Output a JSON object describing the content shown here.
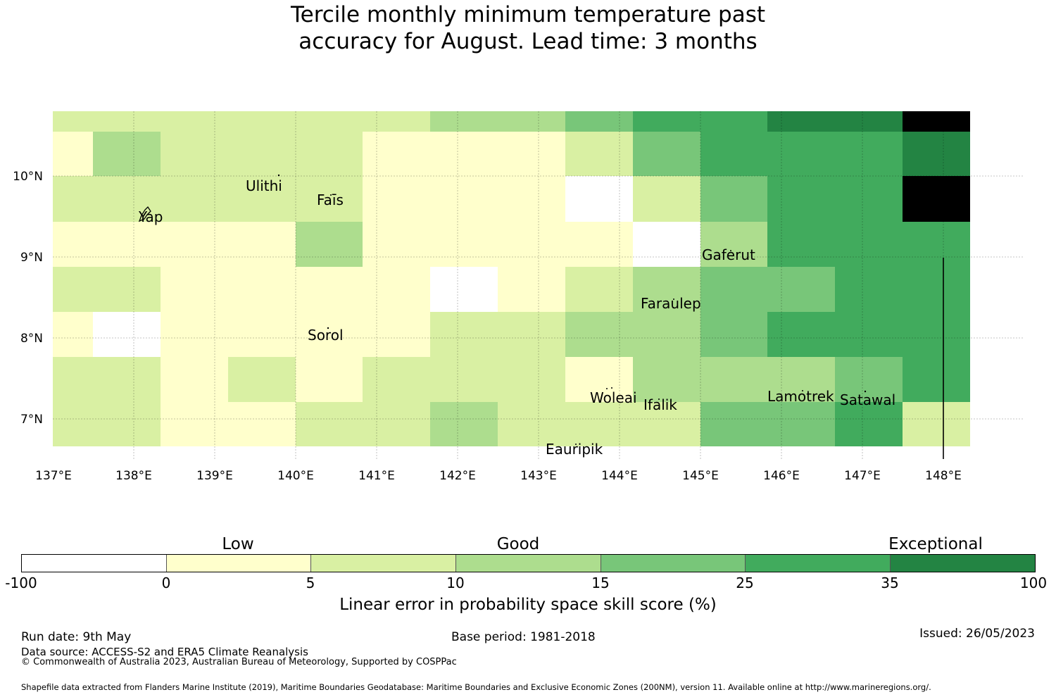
{
  "title": {
    "line1": "Tercile monthly minimum temperature past",
    "line2": "accuracy for August. Lead time: 3 months"
  },
  "map": {
    "lon_range": [
      137,
      149
    ],
    "lat_range": [
      6.5,
      10.8
    ],
    "lon_ticks": [
      "137°E",
      "138°E",
      "139°E",
      "140°E",
      "141°E",
      "142°E",
      "143°E",
      "144°E",
      "145°E",
      "146°E",
      "147°E",
      "148°E"
    ],
    "lat_ticks": [
      "10°N",
      "9°N",
      "8°N",
      "7°N"
    ],
    "grid": true,
    "color_classes": [
      "#ffffff",
      "#ffffcc",
      "#d9f0a3",
      "#addd8e",
      "#78c679",
      "#41ab5d",
      "#238443"
    ],
    "cell_columns": 14,
    "cell_rows": 8,
    "cells": [
      "22222233455667",
      "13222111245556",
      "22222111024557",
      "11113111103555",
      "22111101234455",
      "10111122334555",
      "22121222133345",
      "22112232224452"
    ],
    "islands": [
      {
        "name": "Ulithi",
        "lon": 139.8,
        "lat": 10.0
      },
      {
        "name": "Fais",
        "lon": 140.5,
        "lat": 9.75
      },
      {
        "name": "Yap",
        "lon": 138.1,
        "lat": 9.55
      },
      {
        "name": "Gaferut",
        "lon": 145.35,
        "lat": 9.22
      },
      {
        "name": "Faraulep",
        "lon": 144.5,
        "lat": 8.6
      },
      {
        "name": "Sorol",
        "lon": 140.4,
        "lat": 8.15
      },
      {
        "name": "Woleai",
        "lon": 143.9,
        "lat": 7.35
      },
      {
        "name": "Ifalik",
        "lon": 144.45,
        "lat": 7.25
      },
      {
        "name": "Lamotrek",
        "lon": 146.3,
        "lat": 7.45
      },
      {
        "name": "Satawal",
        "lon": 147.0,
        "lat": 7.35
      },
      {
        "name": "Eauripik",
        "lon": 143.1,
        "lat": 6.7
      }
    ],
    "island_labels": {
      "ulithi": "Ulithi",
      "fais": "Faīs",
      "yap": "Yap",
      "gaferut": "Gaferut",
      "faraulep": "Faraulep",
      "sorol": "Sorol",
      "woleai": "Woleai",
      "ifalik": "Ifalik",
      "lamotrek": "Lamotrek",
      "satawal": "Satawal",
      "eauripik": "Eauripik"
    },
    "boundary_line_lon": 148.0
  },
  "colorbar": {
    "categories": [
      "Low",
      "Good",
      "Exceptional"
    ],
    "ticks": [
      "-100",
      "0",
      "5",
      "10",
      "15",
      "25",
      "35",
      "100"
    ],
    "colors": [
      "#ffffff",
      "#ffffcc",
      "#d9f0a3",
      "#addd8e",
      "#78c679",
      "#41ab5d",
      "#238443"
    ],
    "label": "Linear error in probability space skill score (%)"
  },
  "footer": {
    "run_date": "Run date: 9th May",
    "base_period": "Base period: 1981-2018",
    "issued": "Issued: 26/05/2023",
    "data_source": "Data source: ACCESS-S2 and ERA5 Climate Reanalysis",
    "copyright": "© Commonwealth of Australia 2023, Australian Bureau of Meteorology, Supported by COSPPac",
    "shapefile": "Shapefile data extracted from Flanders Marine Institute (2019), Maritime Boundaries Geodatabase: Maritime Boundaries and Exclusive Economic Zones (200NM), version 11. Available online at http://www.marineregions.org/."
  }
}
